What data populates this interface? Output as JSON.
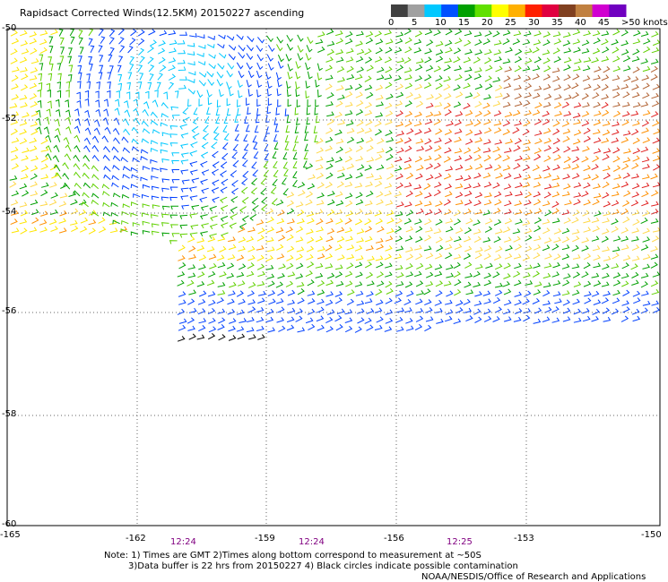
{
  "title": "Rapidsact Corrected Winds(12.5KM) 20150227 ascending",
  "colorbar": {
    "labels": [
      "0",
      "5",
      "10",
      "15",
      "20",
      "25",
      "30",
      "35",
      "40",
      "45",
      ">50 knots"
    ],
    "colors": [
      "#404040",
      "#a0a0a0",
      "#00c8ff",
      "#0050ff",
      "#00a000",
      "#60e000",
      "#ffff00",
      "#ffb000",
      "#ff2000",
      "#e00040",
      "#804020",
      "#c08040",
      "#d000d0",
      "#7000c0"
    ]
  },
  "map": {
    "lat_labels": [
      "-50",
      "-52",
      "-54",
      "-56",
      "-58",
      "-60"
    ],
    "lon_labels": [
      "-165",
      "-162",
      "-159",
      "-156",
      "-153",
      "-150"
    ],
    "lat_range": [
      -60,
      -50
    ],
    "lon_range": [
      -165,
      -150
    ],
    "gridlines": "dotted",
    "time_labels": [
      "12:24",
      "12:24",
      "12:25"
    ]
  },
  "notes": {
    "line1": "Note: 1) Times are GMT 2)Times along bottom correspond to measurement at ~50S",
    "line2": "3)Data buffer is 22 hrs from 20150227 4) Black circles indicate possible contamination",
    "credit": "NOAA/NESDIS/Office of Research and Applications"
  }
}
